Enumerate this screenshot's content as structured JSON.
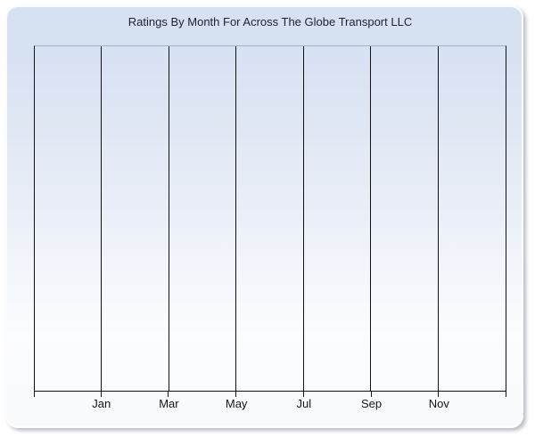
{
  "chart_data": {
    "type": "line",
    "title": "Ratings By Month For Across The Globe Transport LLC",
    "xlabel": "",
    "ylabel": "",
    "x_tick_labels": [
      "Jan",
      "Mar",
      "May",
      "Jul",
      "Sep",
      "Nov"
    ],
    "x_gridline_count": 8,
    "series": [],
    "grid": "vertical-only",
    "legend": "none",
    "plot_area_empty": true
  },
  "colors": {
    "page_background": "#ffffff",
    "panel_gradient_top": "#d6e1f2",
    "panel_gradient_mid": "#e9eef7",
    "panel_gradient_bottom": "#fcfdfe",
    "panel_shadow": "#b9bec6",
    "plot_border_top": "#a6b0c3",
    "gridline": "#121212",
    "axis": "#121212",
    "title_text": "#222230",
    "tick_label_text": "#141414"
  }
}
